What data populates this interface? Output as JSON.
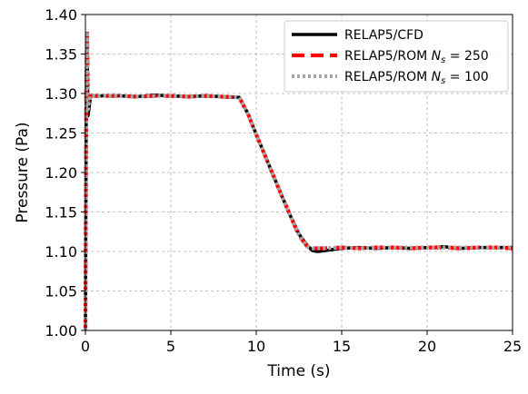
{
  "chart_data": {
    "type": "line",
    "title": "",
    "xlabel": "Time (s)",
    "ylabel": "Pressure (Pa)",
    "xlim": [
      0,
      25
    ],
    "ylim": [
      1.0,
      1.4
    ],
    "xticks": [
      0,
      5,
      10,
      15,
      20,
      25
    ],
    "xtick_labels": [
      "0",
      "5",
      "10",
      "15",
      "20",
      "25"
    ],
    "yticks": [
      1.0,
      1.05,
      1.1,
      1.15,
      1.2,
      1.25,
      1.3,
      1.35,
      1.4
    ],
    "ytick_labels": [
      "1.00",
      "1.05",
      "1.10",
      "1.15",
      "1.20",
      "1.25",
      "1.30",
      "1.35",
      "1.40"
    ],
    "grid": true,
    "legend_position": "top-right",
    "series": [
      {
        "name": "RELAP5/CFD",
        "legend_base": "RELAP5/CFD",
        "legend_sub": "",
        "legend_rest": "",
        "color": "#000000",
        "style": "solid",
        "x": [
          0,
          0.05,
          0.1,
          0.15,
          0.2,
          0.3,
          0.5,
          1,
          2,
          3,
          4,
          5,
          6,
          7,
          8,
          9,
          9.5,
          10,
          10.5,
          11,
          11.5,
          12,
          12.5,
          13,
          13.3,
          13.6,
          14,
          15,
          16,
          17,
          18,
          19,
          20,
          21,
          22,
          23,
          24,
          25
        ],
        "y": [
          1.0,
          1.3,
          1.37,
          1.272,
          1.28,
          1.297,
          1.297,
          1.297,
          1.297,
          1.296,
          1.298,
          1.297,
          1.296,
          1.297,
          1.296,
          1.295,
          1.275,
          1.248,
          1.222,
          1.196,
          1.17,
          1.145,
          1.122,
          1.107,
          1.101,
          1.1,
          1.101,
          1.104,
          1.105,
          1.104,
          1.105,
          1.104,
          1.105,
          1.106,
          1.104,
          1.105,
          1.105,
          1.105
        ]
      },
      {
        "name": "RELAP5/ROM Ns = 250",
        "legend_base": "RELAP5/ROM ",
        "legend_sub": "s",
        "legend_rest": " = 250",
        "color": "#ff0000",
        "style": "dashed",
        "x": [
          0,
          0.05,
          0.1,
          0.15,
          0.2,
          0.3,
          0.5,
          1,
          2,
          3,
          4,
          5,
          6,
          7,
          8,
          9,
          9.5,
          10,
          10.5,
          11,
          11.5,
          12,
          12.5,
          13,
          13.3,
          13.6,
          14,
          15,
          16,
          17,
          18,
          19,
          20,
          21,
          22,
          23,
          24,
          25
        ],
        "y": [
          1.0,
          1.31,
          1.38,
          1.285,
          1.29,
          1.297,
          1.297,
          1.297,
          1.297,
          1.296,
          1.297,
          1.297,
          1.296,
          1.297,
          1.296,
          1.295,
          1.275,
          1.248,
          1.222,
          1.196,
          1.17,
          1.145,
          1.12,
          1.106,
          1.104,
          1.104,
          1.104,
          1.105,
          1.104,
          1.105,
          1.105,
          1.104,
          1.105,
          1.105,
          1.104,
          1.105,
          1.105,
          1.104
        ]
      },
      {
        "name": "RELAP5/ROM Ns = 100",
        "legend_base": "RELAP5/ROM ",
        "legend_sub": "s",
        "legend_rest": " = 100",
        "color": "#a6a6a6",
        "style": "dotted",
        "x": [
          0,
          0.05,
          0.1,
          0.15,
          0.2,
          0.3,
          0.5,
          1,
          2,
          3,
          4,
          5,
          6,
          7,
          8,
          9,
          9.5,
          10,
          10.5,
          11,
          11.5,
          12,
          12.5,
          13,
          13.3,
          13.6,
          14,
          15,
          16,
          17,
          18,
          19,
          20,
          21,
          22,
          23,
          24,
          25
        ],
        "y": [
          1.0,
          1.3,
          1.375,
          1.28,
          1.288,
          1.297,
          1.297,
          1.297,
          1.297,
          1.296,
          1.297,
          1.297,
          1.296,
          1.297,
          1.296,
          1.295,
          1.275,
          1.248,
          1.222,
          1.196,
          1.17,
          1.145,
          1.121,
          1.106,
          1.104,
          1.104,
          1.104,
          1.105,
          1.104,
          1.105,
          1.105,
          1.105,
          1.105,
          1.105,
          1.105,
          1.105,
          1.105,
          1.105
        ]
      }
    ]
  }
}
